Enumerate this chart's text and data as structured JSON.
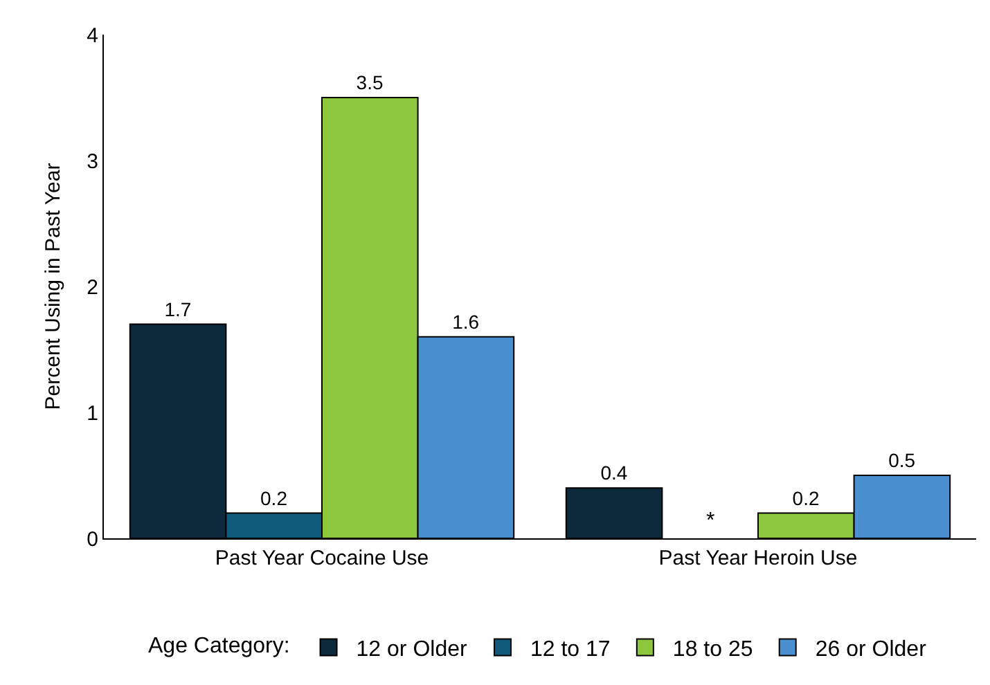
{
  "chart_data": {
    "type": "bar",
    "ylabel": "Percent Using in Past Year",
    "legend_title": "Age Category:",
    "categories": [
      "Past Year Cocaine Use",
      "Past Year Heroin Use"
    ],
    "series": [
      {
        "name": "12 or Older",
        "color": "#0c2a3b",
        "values": [
          1.7,
          0.4
        ],
        "value_labels": [
          "1.7",
          "0.4"
        ]
      },
      {
        "name": "12 to 17",
        "color": "#0e5b7c",
        "values": [
          0.2,
          null
        ],
        "value_labels": [
          "0.2",
          "*"
        ]
      },
      {
        "name": "18 to 25",
        "color": "#8dc63f",
        "values": [
          3.5,
          0.2
        ],
        "value_labels": [
          "3.5",
          "0.2"
        ]
      },
      {
        "name": "26 or Older",
        "color": "#4a8fd0",
        "values": [
          1.6,
          0.5
        ],
        "value_labels": [
          "1.6",
          "0.5"
        ]
      }
    ],
    "ylim": [
      0,
      4
    ],
    "yticks": [
      0,
      1,
      2,
      3,
      4
    ],
    "legend": "bottom"
  }
}
